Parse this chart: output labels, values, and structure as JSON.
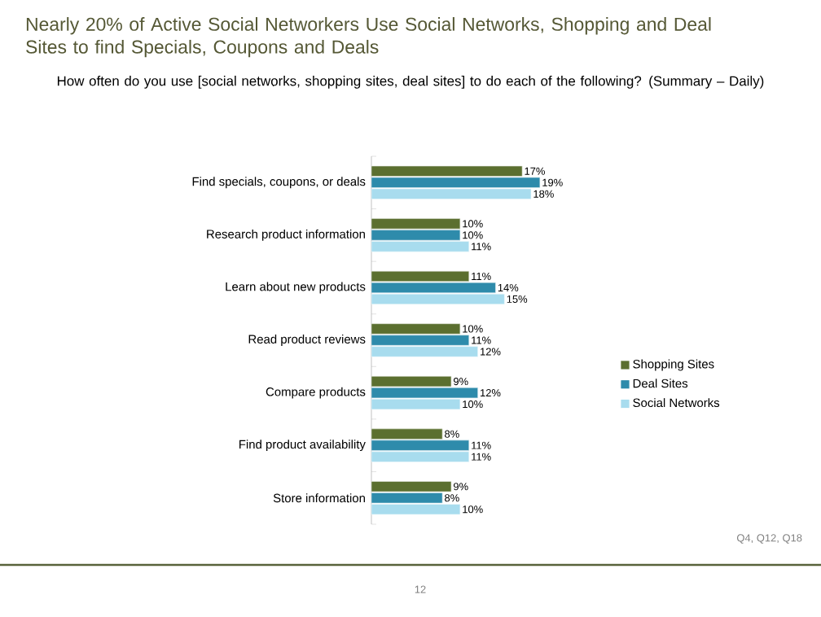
{
  "chart_data": {
    "type": "bar",
    "orientation": "horizontal",
    "title": "Nearly 20% of Active Social Networkers Use Social Networks, Shopping and Deal Sites to find Specials, Coupons and Deals",
    "subtitle": "How often do you use [social networks, shopping sites, deal sites] to do each of the following? (Summary – Daily)",
    "categories": [
      "Find specials, coupons, or deals",
      "Research product information",
      "Learn about new products",
      "Read product reviews",
      "Compare products",
      "Find product availability",
      "Store information"
    ],
    "series": [
      {
        "name": "Shopping Sites",
        "color": "#5b6f2f",
        "values": [
          17,
          10,
          11,
          10,
          9,
          8,
          9
        ],
        "value_labels": [
          "17%",
          "10%",
          "11%",
          "10%",
          "9%",
          "8%",
          "9%"
        ]
      },
      {
        "name": "Deal Sites",
        "color": "#2e8bab",
        "values": [
          19,
          10,
          14,
          11,
          12,
          11,
          8
        ],
        "value_labels": [
          "19%",
          "10%",
          "14%",
          "11%",
          "12%",
          "11%",
          "8%"
        ]
      },
      {
        "name": "Social Networks",
        "color": "#a8dcee",
        "values": [
          18,
          11,
          15,
          12,
          10,
          11,
          10
        ],
        "value_labels": [
          "18%",
          "11%",
          "15%",
          "12%",
          "10%",
          "11%",
          "10%"
        ]
      }
    ],
    "legend": "right",
    "annotations": [
      "Q4, Q12, Q18",
      "12"
    ]
  }
}
